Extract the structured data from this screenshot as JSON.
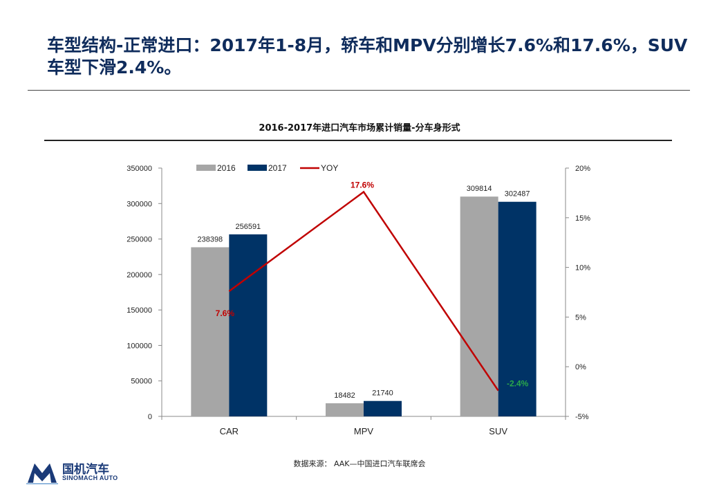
{
  "slide": {
    "title": "车型结构-正常进口：2017年1-8月，轿车和MPV分别增长7.6%和17.6%，SUV车型下滑2.4%。",
    "source": "数据来源： AAK—中国进口汽车联席会"
  },
  "logo": {
    "name_cn": "国机汽车",
    "name_en": "SINOMACH AUTO"
  },
  "colors": {
    "title": "#0f2c5c",
    "series_2016": "#a6a6a6",
    "series_2017": "#003366",
    "yoy_line": "#c00000",
    "yoy_negative_label": "#2aa84a"
  },
  "chart_data": {
    "type": "bar",
    "title": "2016-2017年进口汽车市场累计销量-分车身形式",
    "categories": [
      "CAR",
      "MPV",
      "SUV"
    ],
    "series": [
      {
        "name": "2016",
        "values": [
          238398,
          18482,
          309814
        ],
        "labels": [
          "238398",
          "18482",
          "309814"
        ]
      },
      {
        "name": "2017",
        "values": [
          256591,
          21740,
          302487
        ],
        "labels": [
          "256591",
          "21740",
          "302487"
        ]
      }
    ],
    "line_series": {
      "name": "YOY",
      "values": [
        7.6,
        17.6,
        -2.4
      ],
      "labels": [
        "7.6%",
        "17.6%",
        "-2.4%"
      ]
    },
    "y_left": {
      "min": 0,
      "max": 350000,
      "ticks": [
        "0",
        "50000",
        "100000",
        "150000",
        "200000",
        "250000",
        "300000",
        "350000"
      ]
    },
    "y_right": {
      "min": -5,
      "max": 20,
      "ticks": [
        "-5%",
        "0%",
        "5%",
        "10%",
        "15%",
        "20%"
      ]
    },
    "legend_position": "top-left",
    "grid": false
  }
}
